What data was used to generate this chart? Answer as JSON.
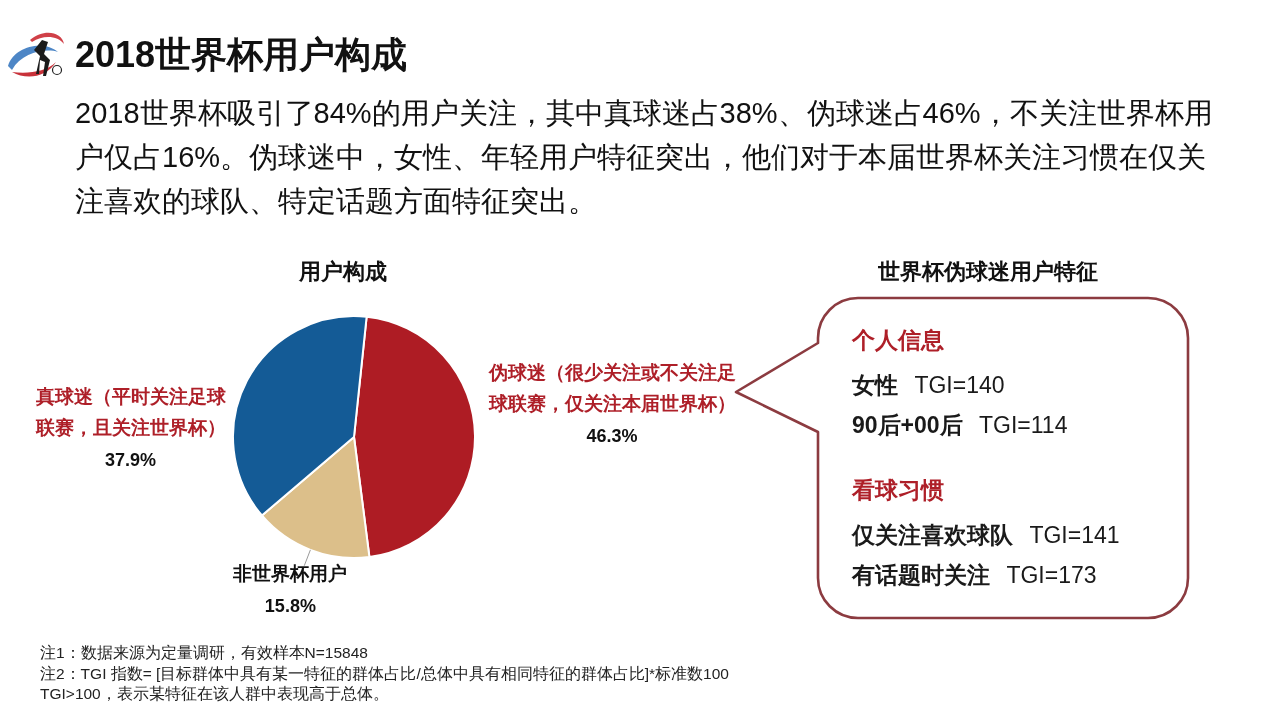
{
  "chart_data": [
    {
      "type": "other",
      "title": "2018世界杯用户构成",
      "subtitle": "2018世界杯吸引了84%的用户关注，其中真球迷占38%、伪球迷占46%，不关注世界杯用户仅占16%。伪球迷中，女性、年轻用户特征突出，他们对于本届世界杯关注习惯在仅关注喜欢的球队、特定话题方面特征突出。",
      "annotations": [
        "注1：数据来源为定量调研，有效样本N=15848",
        "注2：TGI 指数= [目标群体中具有某一特征的群体占比/总体中具有相同特征的群体占比]*标准数100",
        "TGI>100，表示某特征在该人群中表现高于总体。"
      ]
    },
    {
      "type": "pie",
      "title": "用户构成",
      "categories": [
        "伪球迷（很少关注或不关注足球联赛，仅关注本届世界杯）",
        "非世界杯用户",
        "真球迷（平时关注足球联赛，且关注世界杯）"
      ],
      "values": [
        46.3,
        15.8,
        37.9
      ],
      "colors": [
        "#ae1c24",
        "#dcbf8a",
        "#145b96"
      ],
      "value_labels": [
        "46.3%",
        "15.8%",
        "37.9%"
      ]
    },
    {
      "type": "other",
      "title": "世界杯伪球迷用户特征",
      "subtitle": "个人信息",
      "annotations": [
        "**女性** TGI=140",
        "**90后+00后** TGI=114"
      ]
    },
    {
      "type": "other",
      "title": "看球习惯",
      "annotations": [
        "**仅关注喜欢球队** TGI=141",
        "**有话题时关注** TGI=173"
      ]
    }
  ]
}
